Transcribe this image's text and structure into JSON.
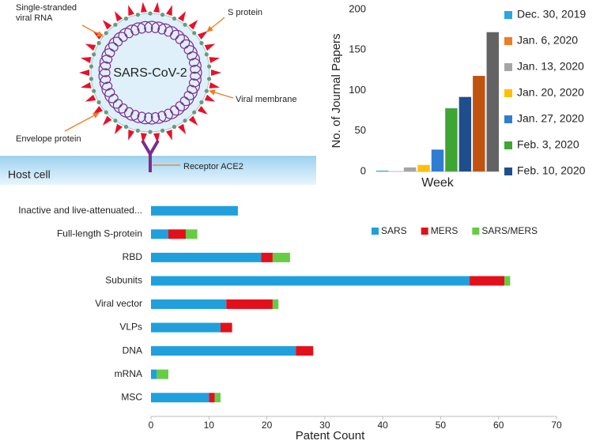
{
  "diagram": {
    "labels": {
      "rna": "Single-stranded viral RNA",
      "s_protein": "S protein",
      "virus": "SARS-CoV-2",
      "membrane": "Viral membrane",
      "envelope": "Envelope protein",
      "host": "Host cell",
      "receptor": "Receptor ACE2"
    }
  },
  "chart_data": [
    {
      "type": "bar",
      "xlabel": "Week",
      "ylabel": "No. of Journal Papers",
      "categories": [
        "Dec. 30, 2019",
        "Jan. 6, 2020",
        "Jan. 13, 2020",
        "Jan. 20, 2020",
        "Jan. 27, 2020",
        "Feb. 3, 2020",
        "Feb. 10, 2020",
        null,
        null
      ],
      "values": [
        1,
        0,
        5,
        8,
        27,
        78,
        92,
        118,
        172
      ],
      "colors": [
        "#2aa7de",
        "#ee7d22",
        "#a5a5a5",
        "#ffc000",
        "#2f7dd1",
        "#3fa535",
        "#1f4e8c",
        "#c0530f",
        "#636363"
      ],
      "ylim": [
        0,
        200
      ],
      "yticks": [
        0,
        50,
        100,
        150,
        200
      ],
      "legend": "right"
    },
    {
      "type": "barh",
      "xlabel": "Patent Count",
      "categories": [
        "Inactive and live-attenuated...",
        "Full-length S-protein",
        "RBD",
        "Subunits",
        "Viral vector",
        "VLPs",
        "DNA",
        "mRNA",
        "MSC"
      ],
      "series": [
        {
          "name": "SARS",
          "color": "#1fa0dc",
          "values": [
            15,
            3,
            19,
            55,
            13,
            12,
            25,
            1,
            10
          ]
        },
        {
          "name": "MERS",
          "color": "#e3101b",
          "values": [
            0,
            3,
            2,
            6,
            8,
            2,
            3,
            0,
            1
          ]
        },
        {
          "name": "SARS/MERS",
          "color": "#66cc44",
          "values": [
            0,
            2,
            3,
            1,
            1,
            0,
            0,
            2,
            1
          ]
        }
      ],
      "xlim": [
        0,
        70
      ],
      "xticks": [
        0,
        10,
        20,
        30,
        40,
        50,
        60,
        70
      ],
      "legend": "upper right"
    }
  ]
}
